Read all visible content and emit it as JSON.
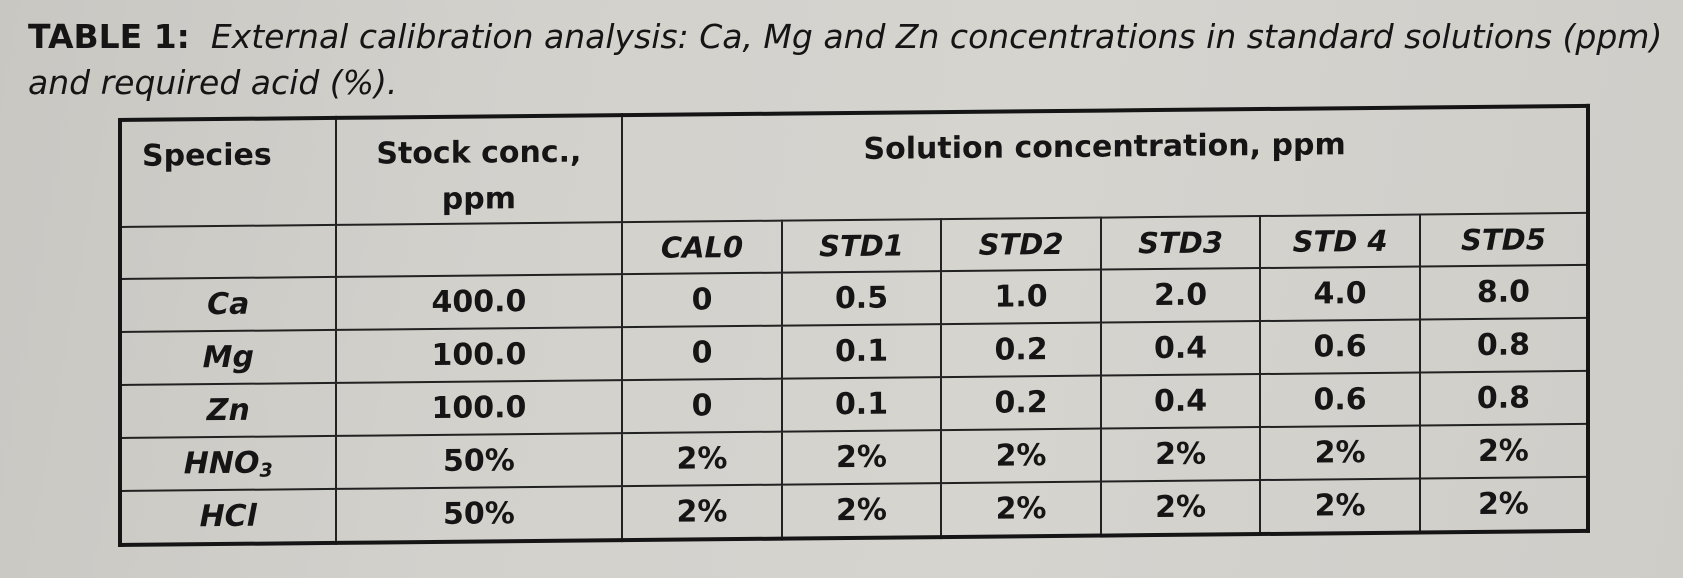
{
  "caption": {
    "label": "TABLE 1:",
    "text": "External calibration analysis: Ca, Mg and Zn concentrations in standard solutions (ppm) and required acid (%)."
  },
  "table": {
    "headers": {
      "species": "Species",
      "stock_line1": "Stock conc.,",
      "stock_line2": "ppm",
      "solution": "Solution concentration, ppm"
    },
    "standards": [
      "CAL0",
      "STD1",
      "STD2",
      "STD3",
      "STD 4",
      "STD5"
    ],
    "rows": [
      {
        "species": "Ca",
        "species_sub": "",
        "stock": "400.0",
        "values": [
          "0",
          "0.5",
          "1.0",
          "2.0",
          "4.0",
          "8.0"
        ]
      },
      {
        "species": "Mg",
        "species_sub": "",
        "stock": "100.0",
        "values": [
          "0",
          "0.1",
          "0.2",
          "0.4",
          "0.6",
          "0.8"
        ]
      },
      {
        "species": "Zn",
        "species_sub": "",
        "stock": "100.0",
        "values": [
          "0",
          "0.1",
          "0.2",
          "0.4",
          "0.6",
          "0.8"
        ]
      },
      {
        "species": "HNO",
        "species_sub": "3",
        "stock": "50%",
        "values": [
          "2%",
          "2%",
          "2%",
          "2%",
          "2%",
          "2%"
        ]
      },
      {
        "species": "HCl",
        "species_sub": "",
        "stock": "50%",
        "values": [
          "2%",
          "2%",
          "2%",
          "2%",
          "2%",
          "2%"
        ]
      }
    ]
  }
}
